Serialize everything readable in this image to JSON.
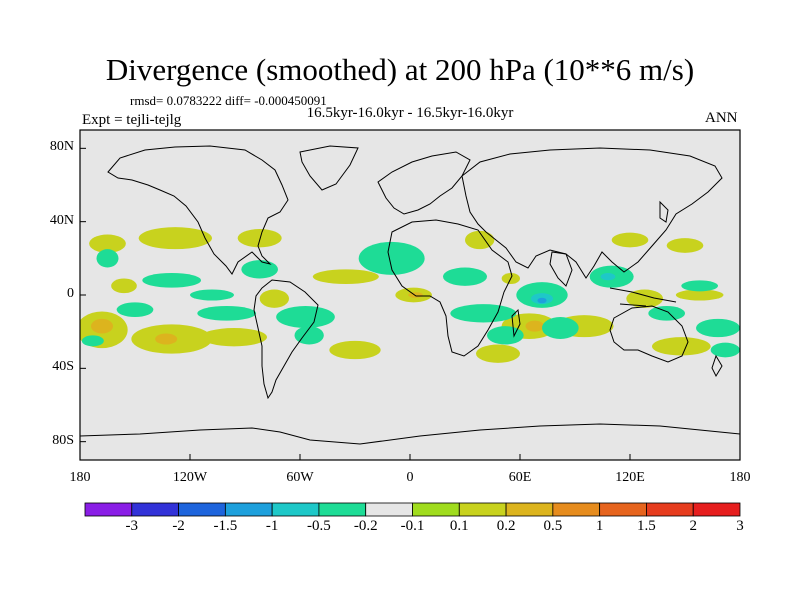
{
  "header": {
    "title": "Divergence (smoothed) at 200 hPa (10**6 m/s)",
    "stats": "rmsd= 0.0783222 diff= -0.000450091",
    "subtitle": "16.5kyr-16.0kyr - 16.5kyr-16.0kyr",
    "experiment": "Expt = tejli-tejlg",
    "season": "ANN"
  },
  "chart_data": {
    "type": "heatmap",
    "projection": "cylindrical-equidistant",
    "title": "Divergence (smoothed) at 200 hPa (10**6 m/s)",
    "xlim": [
      -180,
      180
    ],
    "ylim": [
      -90,
      90
    ],
    "x_ticks": [
      {
        "value": -180,
        "label": "180"
      },
      {
        "value": -120,
        "label": "120W"
      },
      {
        "value": -60,
        "label": "60W"
      },
      {
        "value": 0,
        "label": "0"
      },
      {
        "value": 60,
        "label": "60E"
      },
      {
        "value": 120,
        "label": "120E"
      },
      {
        "value": 180,
        "label": "180"
      }
    ],
    "y_ticks": [
      {
        "value": 80,
        "label": "80N"
      },
      {
        "value": 40,
        "label": "40N"
      },
      {
        "value": 0,
        "label": "0"
      },
      {
        "value": -40,
        "label": "40S"
      },
      {
        "value": -80,
        "label": "80S"
      }
    ],
    "colorbar": {
      "levels": [
        "-3",
        "-2",
        "-1.5",
        "-1",
        "-0.5",
        "-0.2",
        "-0.1",
        "0.1",
        "0.2",
        "0.5",
        "1",
        "1.5",
        "2",
        "3"
      ],
      "colors": [
        "#8a1ee6",
        "#3232d8",
        "#1e64dc",
        "#1ea0dc",
        "#1ec8c8",
        "#1edc96",
        "#e6e6e6",
        "#a0dc1e",
        "#c8d21e",
        "#dcb41e",
        "#e68c1e",
        "#e6641e",
        "#e63c1e",
        "#e61e1e"
      ]
    },
    "regions": [
      {
        "level": "0.2",
        "lon": 158,
        "lat": 0,
        "rx": 13,
        "ry": 3
      },
      {
        "level": "0.2",
        "lon": -156,
        "lat": 5,
        "rx": 7,
        "ry": 4
      },
      {
        "level": "0.2",
        "lon": -165,
        "lat": 28,
        "rx": 10,
        "ry": 5
      },
      {
        "level": "0.2",
        "lon": -128,
        "lat": 31,
        "rx": 20,
        "ry": 6
      },
      {
        "level": "0.2",
        "lon": -82,
        "lat": 31,
        "rx": 12,
        "ry": 5
      },
      {
        "level": "0.2",
        "lon": -74,
        "lat": -2,
        "rx": 8,
        "ry": 5
      },
      {
        "level": "0.2",
        "lon": -96,
        "lat": -23,
        "rx": 18,
        "ry": 5
      },
      {
        "level": "0.2",
        "lon": -130,
        "lat": -24,
        "rx": 22,
        "ry": 8
      },
      {
        "level": "0.2",
        "lon": -168,
        "lat": -19,
        "rx": 14,
        "ry": 10
      },
      {
        "level": "0.2",
        "lon": -35,
        "lat": 10,
        "rx": 18,
        "ry": 4
      },
      {
        "level": "0.2",
        "lon": -30,
        "lat": -30,
        "rx": 14,
        "ry": 5
      },
      {
        "level": "0.2",
        "lon": 2,
        "lat": 0,
        "rx": 10,
        "ry": 4
      },
      {
        "level": "0.2",
        "lon": 55,
        "lat": 9,
        "rx": 5,
        "ry": 3
      },
      {
        "level": "0.2",
        "lon": 65,
        "lat": -17,
        "rx": 15,
        "ry": 7
      },
      {
        "level": "0.2",
        "lon": 48,
        "lat": -32,
        "rx": 12,
        "ry": 5
      },
      {
        "level": "0.2",
        "lon": 95,
        "lat": -17,
        "rx": 16,
        "ry": 6
      },
      {
        "level": "0.2",
        "lon": 148,
        "lat": -28,
        "rx": 16,
        "ry": 5
      },
      {
        "level": "0.2",
        "lon": 120,
        "lat": 30,
        "rx": 10,
        "ry": 4
      },
      {
        "level": "0.2",
        "lon": 150,
        "lat": 27,
        "rx": 10,
        "ry": 4
      },
      {
        "level": "0.2",
        "lon": 38,
        "lat": 30,
        "rx": 8,
        "ry": 5
      },
      {
        "level": "0.2",
        "lon": 128,
        "lat": -2,
        "rx": 10,
        "ry": 5
      },
      {
        "level": "0.5",
        "lon": -168,
        "lat": -17,
        "rx": 6,
        "ry": 4
      },
      {
        "level": "0.5",
        "lon": -133,
        "lat": -24,
        "rx": 6,
        "ry": 3
      },
      {
        "level": "0.5",
        "lon": 68,
        "lat": -17,
        "rx": 5,
        "ry": 3
      },
      {
        "level": "0.5",
        "lon": 3,
        "lat": 0,
        "rx": 4,
        "ry": 1.5
      },
      {
        "level": "-0.2",
        "lon": -165,
        "lat": 20,
        "rx": 6,
        "ry": 5
      },
      {
        "level": "-0.2",
        "lon": -130,
        "lat": 8,
        "rx": 16,
        "ry": 4
      },
      {
        "level": "-0.2",
        "lon": -108,
        "lat": 0,
        "rx": 12,
        "ry": 3
      },
      {
        "level": "-0.2",
        "lon": -150,
        "lat": -8,
        "rx": 10,
        "ry": 4
      },
      {
        "level": "-0.2",
        "lon": -100,
        "lat": -10,
        "rx": 16,
        "ry": 4
      },
      {
        "level": "-0.2",
        "lon": -82,
        "lat": 14,
        "rx": 10,
        "ry": 5
      },
      {
        "level": "-0.2",
        "lon": -57,
        "lat": -12,
        "rx": 16,
        "ry": 6
      },
      {
        "level": "-0.2",
        "lon": -55,
        "lat": -22,
        "rx": 8,
        "ry": 5
      },
      {
        "level": "-0.2",
        "lon": -173,
        "lat": -25,
        "rx": 6,
        "ry": 3
      },
      {
        "level": "-0.2",
        "lon": -10,
        "lat": 20,
        "rx": 18,
        "ry": 9
      },
      {
        "level": "-0.2",
        "lon": 30,
        "lat": 10,
        "rx": 12,
        "ry": 5
      },
      {
        "level": "-0.2",
        "lon": 40,
        "lat": -10,
        "rx": 18,
        "ry": 5
      },
      {
        "level": "-0.2",
        "lon": 52,
        "lat": -22,
        "rx": 10,
        "ry": 5
      },
      {
        "level": "-0.2",
        "lon": 72,
        "lat": 0,
        "rx": 14,
        "ry": 7
      },
      {
        "level": "-0.2",
        "lon": 82,
        "lat": -18,
        "rx": 10,
        "ry": 6
      },
      {
        "level": "-0.2",
        "lon": 110,
        "lat": 10,
        "rx": 12,
        "ry": 6
      },
      {
        "level": "-0.2",
        "lon": 140,
        "lat": -10,
        "rx": 10,
        "ry": 4
      },
      {
        "level": "-0.2",
        "lon": 168,
        "lat": -18,
        "rx": 12,
        "ry": 5
      },
      {
        "level": "-0.2",
        "lon": 172,
        "lat": -30,
        "rx": 8,
        "ry": 4
      },
      {
        "level": "-0.2",
        "lon": 158,
        "lat": 5,
        "rx": 10,
        "ry": 3
      },
      {
        "level": "-0.5",
        "lon": 72,
        "lat": -2,
        "rx": 6,
        "ry": 3
      },
      {
        "level": "-0.5",
        "lon": 108,
        "lat": 10,
        "rx": 4,
        "ry": 2
      },
      {
        "level": "-1",
        "lon": 72,
        "lat": -3,
        "rx": 2.5,
        "ry": 1.5
      }
    ]
  }
}
